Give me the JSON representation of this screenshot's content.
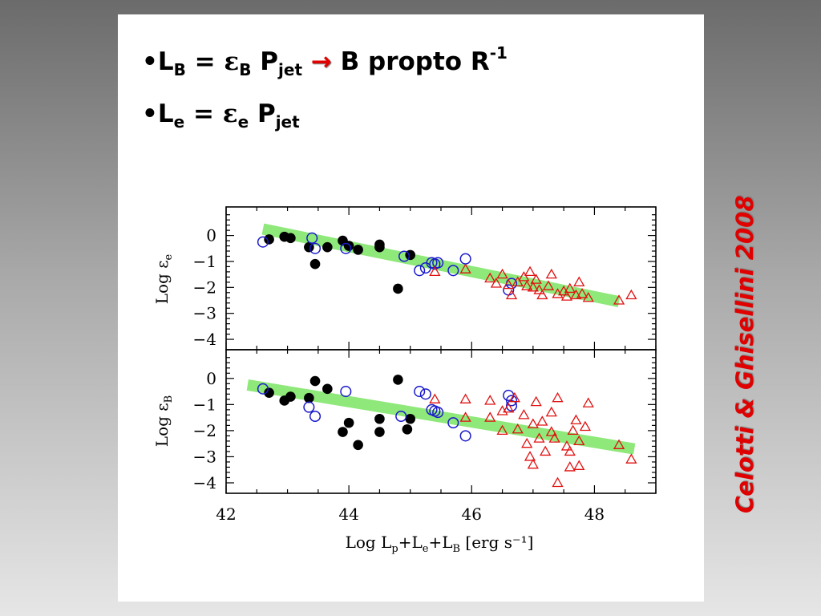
{
  "slide": {
    "bullet_1": {
      "marker": "•",
      "L": "L",
      "L_sub": "B",
      "eq": " = ",
      "eps": "ε",
      "eps_sub": "B",
      "P": " P",
      "P_sub": "jet",
      "arrow": " → ",
      "rest": "B propto R",
      "rest_sup": "-1"
    },
    "bullet_2": {
      "marker": "•",
      "L": "L",
      "L_sub": "e",
      "eq": " = ",
      "eps": "ε",
      "eps_sub": "e",
      "P": " P",
      "P_sub": "jet"
    },
    "credit": "Celotti & Ghisellini 2008"
  },
  "chart_data": {
    "type": "scatter",
    "xlabel": {
      "main": "Log  L",
      "p": "p",
      "plus1": "+L",
      "e": "e",
      "plus2": "+L",
      "B": "B",
      "unit": " [erg s⁻¹]"
    },
    "xlim": [
      42,
      49
    ],
    "xticks": [
      42,
      44,
      46,
      48
    ],
    "colors": {
      "filled": "#000000",
      "open_circle": "#1a1acc",
      "triangle": "#e01010",
      "fit": "#8fe87a"
    },
    "panels": [
      {
        "name": "top",
        "ylabel": "Log  ε",
        "ylabel_sub": "e",
        "ylim": [
          -4.4,
          1.1
        ],
        "yticks": [
          0,
          -1,
          -2,
          -3,
          -4
        ],
        "fit_line": [
          [
            42.6,
            0.25
          ],
          [
            48.4,
            -2.55
          ]
        ],
        "series": [
          {
            "marker": "filled-circle",
            "points": [
              [
                42.7,
                -0.15
              ],
              [
                42.95,
                -0.05
              ],
              [
                43.05,
                -0.1
              ],
              [
                43.35,
                -0.45
              ],
              [
                43.45,
                -1.1
              ],
              [
                43.65,
                -0.45
              ],
              [
                43.9,
                -0.2
              ],
              [
                44.0,
                -0.4
              ],
              [
                44.15,
                -0.55
              ],
              [
                44.5,
                -0.35
              ],
              [
                44.5,
                -0.45
              ],
              [
                44.8,
                -2.05
              ],
              [
                45.0,
                -0.75
              ]
            ]
          },
          {
            "marker": "open-circle",
            "points": [
              [
                42.6,
                -0.25
              ],
              [
                43.4,
                -0.1
              ],
              [
                43.45,
                -0.5
              ],
              [
                43.95,
                -0.5
              ],
              [
                44.9,
                -0.8
              ],
              [
                45.15,
                -1.35
              ],
              [
                45.25,
                -1.25
              ],
              [
                45.35,
                -1.05
              ],
              [
                45.4,
                -1.1
              ],
              [
                45.45,
                -1.05
              ],
              [
                45.7,
                -1.35
              ],
              [
                45.9,
                -0.9
              ],
              [
                46.6,
                -2.1
              ],
              [
                46.65,
                -1.85
              ]
            ]
          },
          {
            "marker": "triangle",
            "points": [
              [
                45.4,
                -1.4
              ],
              [
                45.9,
                -1.3
              ],
              [
                46.3,
                -1.65
              ],
              [
                46.4,
                -1.85
              ],
              [
                46.5,
                -1.5
              ],
              [
                46.6,
                -1.9
              ],
              [
                46.65,
                -2.3
              ],
              [
                46.75,
                -1.8
              ],
              [
                46.85,
                -1.6
              ],
              [
                46.9,
                -1.95
              ],
              [
                46.95,
                -1.4
              ],
              [
                47.0,
                -2.0
              ],
              [
                47.05,
                -1.7
              ],
              [
                47.1,
                -2.1
              ],
              [
                47.15,
                -2.3
              ],
              [
                47.25,
                -1.95
              ],
              [
                47.3,
                -1.5
              ],
              [
                47.4,
                -2.25
              ],
              [
                47.5,
                -2.15
              ],
              [
                47.55,
                -2.35
              ],
              [
                47.6,
                -2.05
              ],
              [
                47.7,
                -2.3
              ],
              [
                47.75,
                -1.8
              ],
              [
                47.8,
                -2.25
              ],
              [
                47.9,
                -2.4
              ],
              [
                48.4,
                -2.5
              ],
              [
                48.6,
                -2.3
              ]
            ]
          }
        ]
      },
      {
        "name": "bottom",
        "ylabel": "Log  ε",
        "ylabel_sub": "B",
        "ylim": [
          -4.4,
          1.1
        ],
        "yticks": [
          0,
          -1,
          -2,
          -3,
          -4
        ],
        "fit_line": [
          [
            42.35,
            -0.25
          ],
          [
            48.65,
            -2.7
          ]
        ],
        "series": [
          {
            "marker": "filled-circle",
            "points": [
              [
                42.7,
                -0.55
              ],
              [
                42.95,
                -0.85
              ],
              [
                43.05,
                -0.7
              ],
              [
                43.35,
                -0.75
              ],
              [
                43.45,
                -0.1
              ],
              [
                43.65,
                -0.4
              ],
              [
                43.9,
                -2.05
              ],
              [
                44.0,
                -1.7
              ],
              [
                44.15,
                -2.55
              ],
              [
                44.5,
                -1.55
              ],
              [
                44.5,
                -2.05
              ],
              [
                44.8,
                -0.05
              ],
              [
                44.95,
                -1.95
              ],
              [
                45.0,
                -1.55
              ]
            ]
          },
          {
            "marker": "open-circle",
            "points": [
              [
                42.6,
                -0.4
              ],
              [
                43.35,
                -1.1
              ],
              [
                43.45,
                -1.45
              ],
              [
                43.95,
                -0.5
              ],
              [
                44.85,
                -1.45
              ],
              [
                45.15,
                -0.5
              ],
              [
                45.25,
                -0.6
              ],
              [
                45.35,
                -1.2
              ],
              [
                45.4,
                -1.25
              ],
              [
                45.45,
                -1.3
              ],
              [
                45.7,
                -1.7
              ],
              [
                45.9,
                -2.2
              ],
              [
                46.6,
                -0.65
              ],
              [
                46.65,
                -0.85
              ],
              [
                46.65,
                -1.05
              ]
            ]
          },
          {
            "marker": "triangle",
            "points": [
              [
                45.4,
                -0.8
              ],
              [
                45.9,
                -0.8
              ],
              [
                45.9,
                -1.5
              ],
              [
                46.3,
                -0.85
              ],
              [
                46.3,
                -1.5
              ],
              [
                46.5,
                -1.25
              ],
              [
                46.5,
                -2.0
              ],
              [
                46.6,
                -1.15
              ],
              [
                46.7,
                -0.75
              ],
              [
                46.75,
                -1.95
              ],
              [
                46.85,
                -1.4
              ],
              [
                46.9,
                -2.5
              ],
              [
                46.95,
                -3.0
              ],
              [
                47.0,
                -1.75
              ],
              [
                47.0,
                -3.3
              ],
              [
                47.05,
                -0.9
              ],
              [
                47.1,
                -2.3
              ],
              [
                47.15,
                -1.65
              ],
              [
                47.2,
                -2.8
              ],
              [
                47.3,
                -2.05
              ],
              [
                47.35,
                -2.3
              ],
              [
                47.3,
                -1.3
              ],
              [
                47.4,
                -0.75
              ],
              [
                47.4,
                -4.0
              ],
              [
                47.55,
                -2.6
              ],
              [
                47.6,
                -2.8
              ],
              [
                47.6,
                -3.4
              ],
              [
                47.65,
                -2.0
              ],
              [
                47.7,
                -1.6
              ],
              [
                47.75,
                -2.4
              ],
              [
                47.75,
                -3.35
              ],
              [
                47.85,
                -1.85
              ],
              [
                47.9,
                -0.95
              ],
              [
                48.4,
                -2.55
              ],
              [
                48.6,
                -3.1
              ]
            ]
          }
        ]
      }
    ]
  }
}
